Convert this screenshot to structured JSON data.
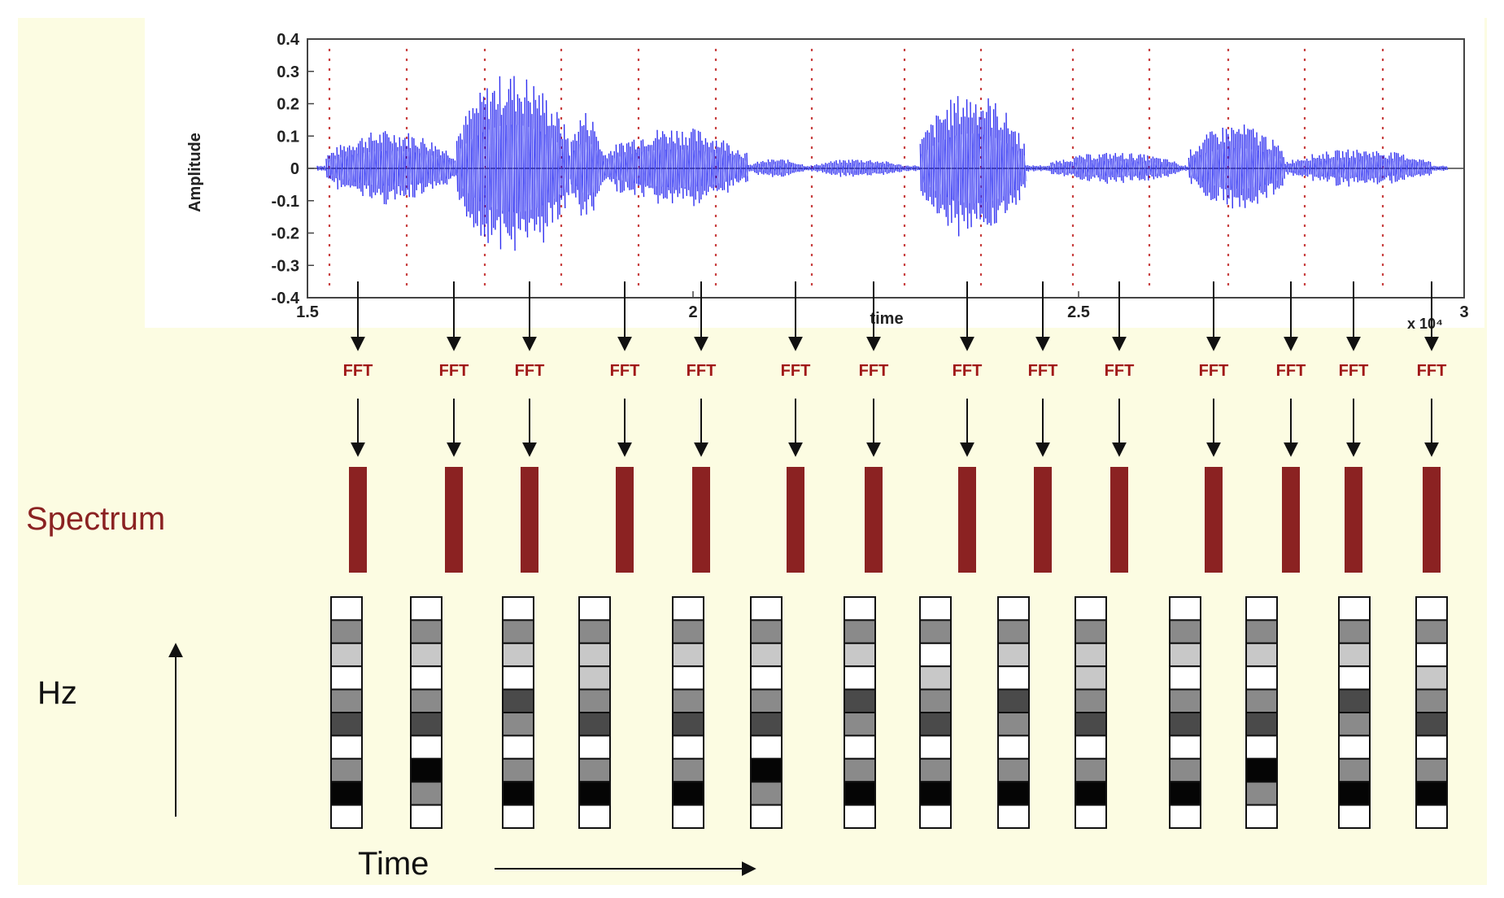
{
  "waveform": {
    "ylabel": "Amplitude",
    "xlabel": "time",
    "y_ticks": [
      "0.4",
      "0.3",
      "0.2",
      "0.1",
      "0",
      "-0.1",
      "-0.2",
      "-0.3",
      "-0.4"
    ],
    "x_ticks": [
      "1.5",
      "2",
      "2.5",
      "3"
    ],
    "x_scale_note": "x 10⁴",
    "colors": {
      "wave": "#1a1aee",
      "wave_light": "#7c84ff",
      "frame_lines": "#c84040",
      "axis": "#444444"
    }
  },
  "fft": {
    "label": "FFT",
    "count": 14,
    "color": "#a01818"
  },
  "spectrum": {
    "label": "Spectrum",
    "bar_color": "#8b2222"
  },
  "spectrogram": {
    "cells_per_column": 10,
    "shades": [
      [
        "w",
        "m",
        "l",
        "w",
        "m",
        "d",
        "w",
        "m",
        "k",
        "w"
      ],
      [
        "w",
        "m",
        "l",
        "w",
        "m",
        "d",
        "w",
        "k",
        "m",
        "w"
      ],
      [
        "w",
        "m",
        "l",
        "w",
        "d",
        "m",
        "w",
        "m",
        "k",
        "w"
      ],
      [
        "w",
        "m",
        "l",
        "l",
        "m",
        "d",
        "w",
        "m",
        "k",
        "w"
      ],
      [
        "w",
        "m",
        "l",
        "w",
        "m",
        "d",
        "w",
        "m",
        "k",
        "w"
      ],
      [
        "w",
        "m",
        "l",
        "w",
        "m",
        "d",
        "w",
        "k",
        "m",
        "w"
      ],
      [
        "w",
        "m",
        "l",
        "w",
        "d",
        "m",
        "w",
        "m",
        "k",
        "w"
      ],
      [
        "w",
        "m",
        "w",
        "l",
        "m",
        "d",
        "w",
        "m",
        "k",
        "w"
      ],
      [
        "w",
        "m",
        "l",
        "w",
        "d",
        "m",
        "w",
        "m",
        "k",
        "w"
      ],
      [
        "w",
        "m",
        "l",
        "l",
        "m",
        "d",
        "w",
        "m",
        "k",
        "w"
      ],
      [
        "w",
        "m",
        "l",
        "w",
        "m",
        "d",
        "w",
        "m",
        "k",
        "w"
      ],
      [
        "w",
        "m",
        "l",
        "w",
        "m",
        "d",
        "w",
        "k",
        "m",
        "w"
      ],
      [
        "w",
        "m",
        "l",
        "w",
        "d",
        "m",
        "w",
        "m",
        "k",
        "w"
      ],
      [
        "w",
        "m",
        "w",
        "l",
        "m",
        "d",
        "w",
        "m",
        "k",
        "w"
      ]
    ],
    "palette": {
      "w": "#ffffff",
      "l": "#c8c8c8",
      "m": "#8a8a8a",
      "d": "#4a4a4a",
      "k": "#050505"
    }
  },
  "axes_labels": {
    "hz": "Hz",
    "time": "Time"
  }
}
